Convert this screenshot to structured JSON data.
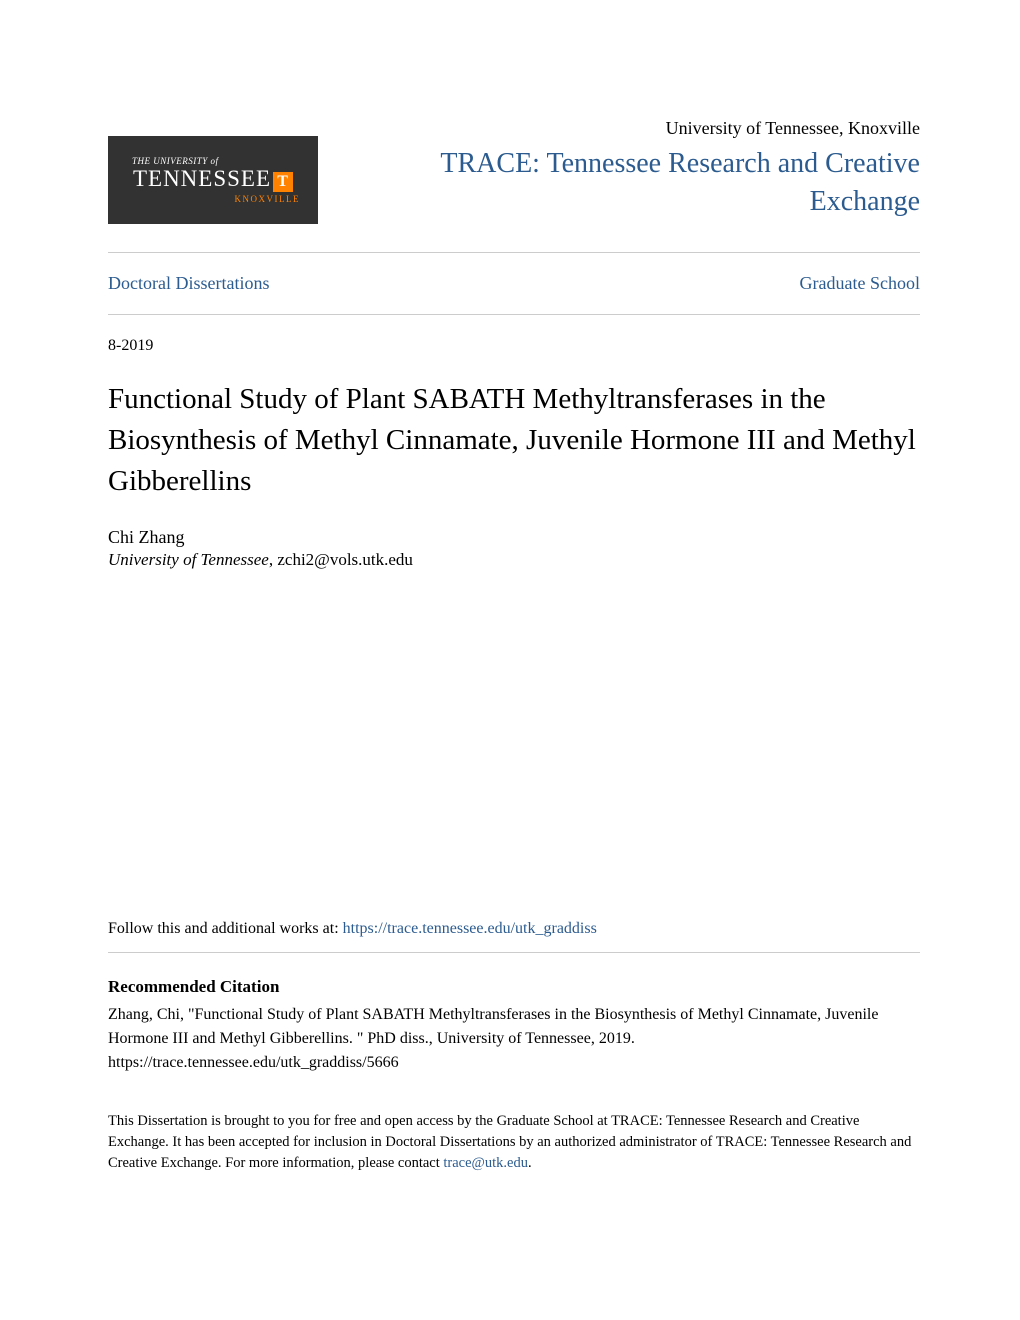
{
  "logo": {
    "pretext": "THE UNIVERSITY of",
    "main": "TENNESSEE",
    "campus": "KNOXVILLE",
    "bg_color": "#323232",
    "accent_color": "#ff8200"
  },
  "header": {
    "institution": "University of Tennessee, Knoxville",
    "repository": "TRACE: Tennessee Research and Creative Exchange"
  },
  "nav": {
    "left": "Doctoral Dissertations",
    "right": "Graduate School"
  },
  "date": "8-2019",
  "title": "Functional Study of Plant SABATH Methyltransferases in the Biosynthesis of Methyl Cinnamate, Juvenile Hormone III and Methyl Gibberellins",
  "author": {
    "name": "Chi Zhang",
    "affiliation": "University of Tennessee",
    "email": "zchi2@vols.utk.edu"
  },
  "follow": {
    "prefix": "Follow this and additional works at: ",
    "url": "https://trace.tennessee.edu/utk_graddiss"
  },
  "citation": {
    "heading": "Recommended Citation",
    "text": "Zhang, Chi, \"Functional Study of Plant SABATH Methyltransferases in the Biosynthesis of Methyl Cinnamate, Juvenile Hormone III and Methyl Gibberellins. \" PhD diss., University of Tennessee, 2019. https://trace.tennessee.edu/utk_graddiss/5666"
  },
  "license": {
    "text": "This Dissertation is brought to you for free and open access by the Graduate School at TRACE: Tennessee Research and Creative Exchange. It has been accepted for inclusion in Doctoral Dissertations by an authorized administrator of TRACE: Tennessee Research and Creative Exchange. For more information, please contact ",
    "contact": "trace@utk.edu",
    "suffix": "."
  },
  "colors": {
    "link": "#2b5b8f",
    "text": "#000000",
    "divider": "#cccccc",
    "background": "#ffffff"
  },
  "typography": {
    "title_fontsize": 29,
    "repo_fontsize": 28,
    "body_fontsize": 16,
    "font_family": "Georgia, serif"
  }
}
